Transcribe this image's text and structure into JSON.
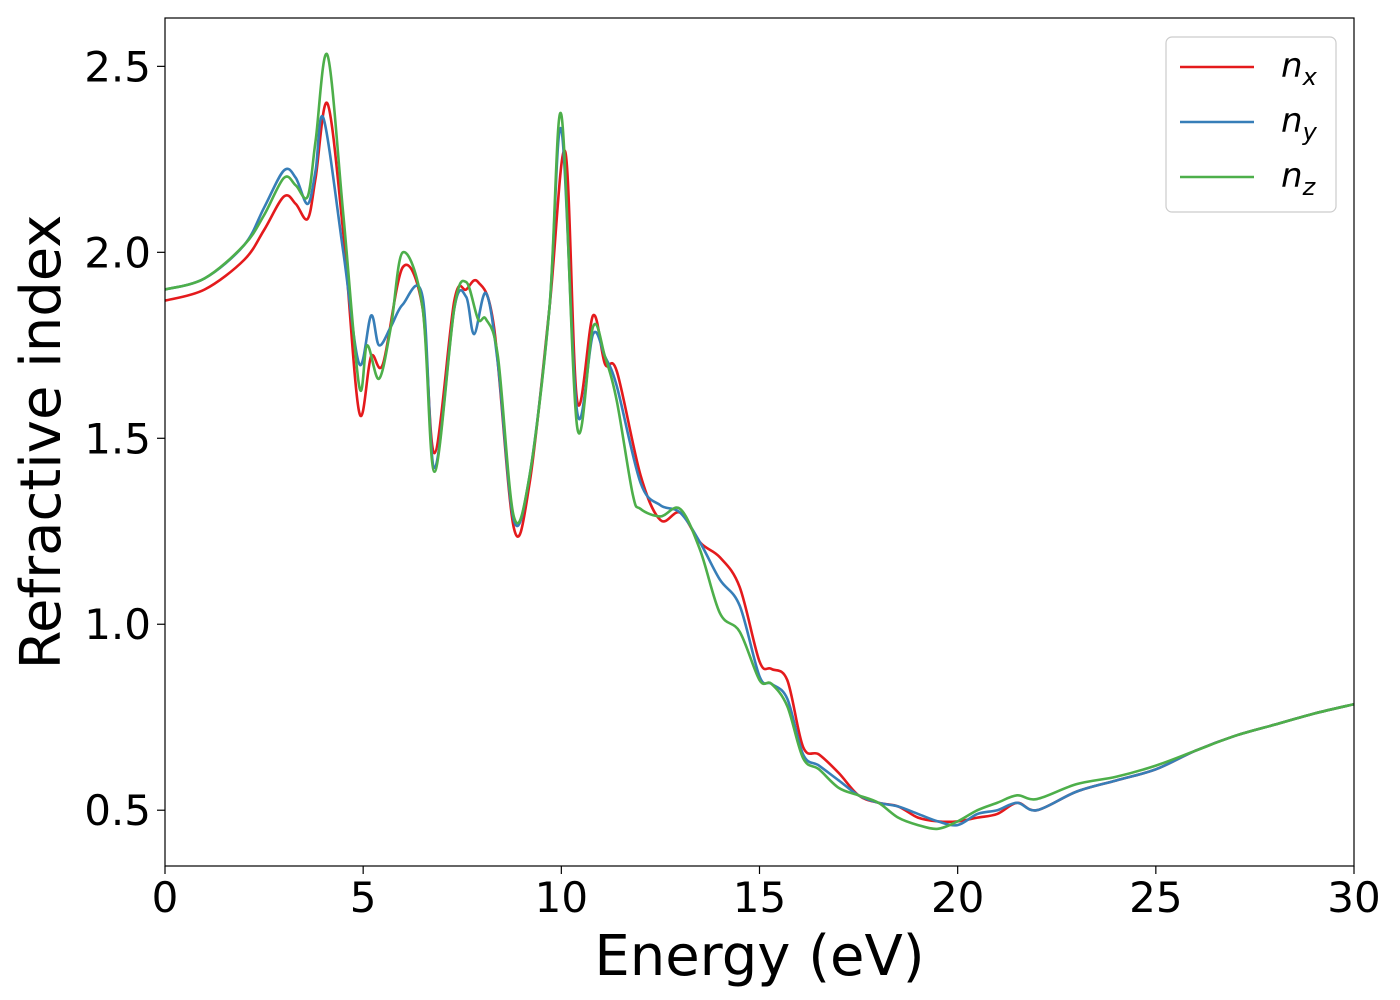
{
  "chart_data": {
    "type": "line",
    "title": "",
    "xlabel": "Energy (eV)",
    "ylabel": "Refractive index",
    "xlim": [
      0,
      30
    ],
    "ylim": [
      0.35,
      2.63
    ],
    "xticks": [
      0,
      5,
      10,
      15,
      20,
      25,
      30
    ],
    "xtick_labels": [
      "0",
      "5",
      "10",
      "15",
      "20",
      "25",
      "30"
    ],
    "yticks": [
      0.5,
      1.0,
      1.5,
      2.0,
      2.5
    ],
    "ytick_labels": [
      "0.5",
      "1.0",
      "1.5",
      "2.0",
      "2.5"
    ],
    "grid": false,
    "legend_position": "top-right",
    "series": [
      {
        "name": "n",
        "subscript": "x",
        "color": "#e41a1c",
        "x": [
          0,
          1,
          2,
          2.5,
          3,
          3.3,
          3.6,
          3.8,
          4.1,
          4.5,
          4.9,
          5.2,
          5.5,
          6.0,
          6.5,
          6.8,
          7.3,
          7.6,
          7.9,
          8.3,
          8.8,
          9.2,
          9.7,
          10.1,
          10.4,
          10.8,
          11.1,
          11.4,
          12.0,
          12.5,
          13.0,
          13.5,
          14.0,
          14.5,
          15.0,
          15.3,
          15.7,
          16.1,
          16.5,
          17.0,
          17.5,
          18.0,
          18.5,
          19.0,
          19.5,
          20.0,
          20.5,
          21.0,
          21.5,
          22.0,
          23.0,
          24.0,
          25.0,
          26.0,
          27.0,
          28.0,
          29.0,
          30.0
        ],
        "y": [
          1.87,
          1.9,
          1.98,
          2.06,
          2.15,
          2.13,
          2.09,
          2.2,
          2.4,
          2.05,
          1.57,
          1.72,
          1.7,
          1.96,
          1.85,
          1.46,
          1.87,
          1.9,
          1.92,
          1.8,
          1.26,
          1.38,
          1.85,
          2.27,
          1.6,
          1.83,
          1.7,
          1.68,
          1.4,
          1.28,
          1.3,
          1.22,
          1.18,
          1.1,
          0.9,
          0.88,
          0.85,
          0.67,
          0.65,
          0.6,
          0.54,
          0.52,
          0.51,
          0.48,
          0.47,
          0.47,
          0.48,
          0.49,
          0.52,
          0.5,
          0.55,
          0.58,
          0.61,
          0.66,
          0.7,
          0.73,
          0.76,
          0.785
        ]
      },
      {
        "name": "n",
        "subscript": "y",
        "color": "#377eb8",
        "x": [
          0,
          1,
          2,
          2.5,
          3,
          3.3,
          3.6,
          3.8,
          4.0,
          4.5,
          4.9,
          5.2,
          5.4,
          5.7,
          6.0,
          6.5,
          6.8,
          7.3,
          7.6,
          7.8,
          8.1,
          8.4,
          8.8,
          9.2,
          9.7,
          10.0,
          10.4,
          10.8,
          11.1,
          11.4,
          12.0,
          12.5,
          13.0,
          13.5,
          14.0,
          14.5,
          15.0,
          15.3,
          15.7,
          16.1,
          16.5,
          17.0,
          17.5,
          18.0,
          18.5,
          19.0,
          19.5,
          20.0,
          20.5,
          21.0,
          21.5,
          22.0,
          23.0,
          24.0,
          25.0,
          26.0,
          27.0,
          28.0,
          29.0,
          30.0
        ],
        "y": [
          1.9,
          1.93,
          2.02,
          2.12,
          2.22,
          2.2,
          2.13,
          2.22,
          2.36,
          2.0,
          1.7,
          1.83,
          1.75,
          1.8,
          1.86,
          1.88,
          1.42,
          1.85,
          1.88,
          1.78,
          1.89,
          1.7,
          1.28,
          1.4,
          1.85,
          2.33,
          1.57,
          1.78,
          1.72,
          1.64,
          1.38,
          1.32,
          1.3,
          1.22,
          1.12,
          1.05,
          0.86,
          0.84,
          0.8,
          0.65,
          0.62,
          0.58,
          0.54,
          0.52,
          0.51,
          0.49,
          0.47,
          0.46,
          0.49,
          0.5,
          0.52,
          0.5,
          0.55,
          0.58,
          0.61,
          0.66,
          0.7,
          0.73,
          0.76,
          0.785
        ]
      },
      {
        "name": "n",
        "subscript": "z",
        "color": "#4daf4a",
        "x": [
          0,
          1,
          2,
          2.5,
          3,
          3.3,
          3.6,
          3.8,
          4.1,
          4.5,
          4.9,
          5.1,
          5.4,
          5.7,
          6.0,
          6.5,
          6.8,
          7.3,
          7.6,
          7.9,
          8.1,
          8.4,
          8.8,
          9.2,
          9.7,
          10.0,
          10.4,
          10.8,
          11.1,
          11.4,
          11.8,
          12.0,
          12.5,
          13.0,
          13.5,
          14.0,
          14.5,
          15.0,
          15.3,
          15.7,
          16.1,
          16.5,
          17.0,
          17.5,
          18.0,
          18.5,
          19.0,
          19.5,
          20.0,
          20.5,
          21.0,
          21.5,
          22.0,
          23.0,
          24.0,
          25.0,
          26.0,
          27.0,
          28.0,
          29.0,
          30.0
        ],
        "y": [
          1.9,
          1.93,
          2.02,
          2.1,
          2.2,
          2.18,
          2.15,
          2.3,
          2.53,
          2.1,
          1.64,
          1.75,
          1.66,
          1.8,
          2.0,
          1.85,
          1.41,
          1.85,
          1.92,
          1.82,
          1.82,
          1.72,
          1.29,
          1.4,
          1.85,
          2.37,
          1.53,
          1.8,
          1.72,
          1.6,
          1.35,
          1.31,
          1.29,
          1.31,
          1.2,
          1.03,
          0.98,
          0.85,
          0.84,
          0.78,
          0.64,
          0.61,
          0.56,
          0.54,
          0.52,
          0.48,
          0.46,
          0.45,
          0.47,
          0.5,
          0.52,
          0.54,
          0.53,
          0.57,
          0.59,
          0.62,
          0.66,
          0.7,
          0.73,
          0.76,
          0.785
        ]
      }
    ]
  }
}
